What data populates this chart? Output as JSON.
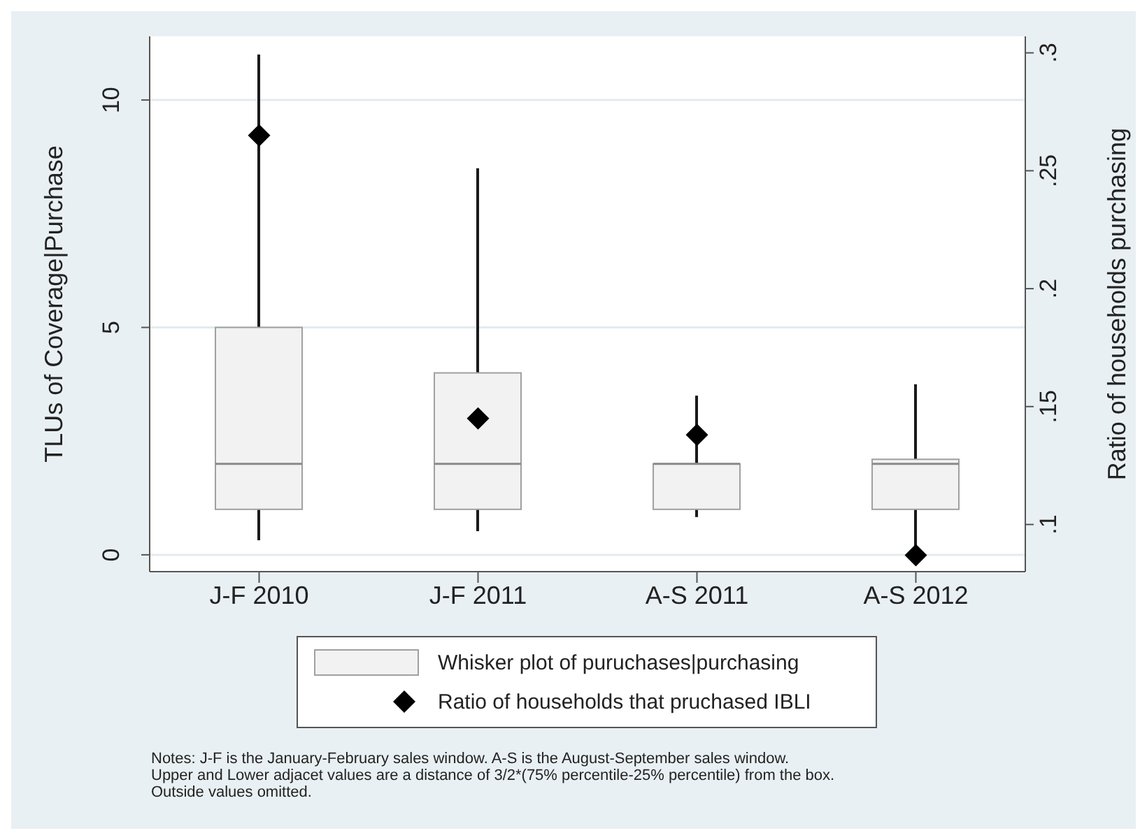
{
  "chart_data": {
    "type": "box",
    "categories": [
      "J-F 2010",
      "J-F 2011",
      "A-S 2011",
      "A-S 2012"
    ],
    "ylabel": "TLUs of Coverage|Purchase",
    "y2label": "Ratio of households purchasing",
    "ylim": [
      -0.37,
      11.4
    ],
    "yticks": [
      0,
      5,
      10
    ],
    "y2lim": [
      0.08,
      0.307
    ],
    "y2ticks": [
      {
        "value": 0.1,
        "label": ".1"
      },
      {
        "value": 0.15,
        "label": ".15"
      },
      {
        "value": 0.2,
        "label": ".2"
      },
      {
        "value": 0.25,
        "label": ".25"
      },
      {
        "value": 0.3,
        "label": ".3"
      }
    ],
    "grid": "y",
    "legend": "bottom",
    "series": [
      {
        "name": "Whisker plot of puruchases|purchasing",
        "color": "#f2f2f2",
        "boxes": [
          {
            "low": 0.32,
            "q1": 1,
            "median": 2,
            "q3": 5,
            "high": 11
          },
          {
            "low": 0.52,
            "q1": 1,
            "median": 2,
            "q3": 4,
            "high": 8.5
          },
          {
            "low": 0.83,
            "q1": 1,
            "median": 2,
            "q3": 2,
            "high": 3.5
          },
          {
            "low": 0,
            "q1": 1,
            "median": 2,
            "q3": 2.1,
            "high": 3.75
          }
        ]
      },
      {
        "name": "Ratio of households that pruchased IBLI",
        "type": "scatter",
        "axis": "y2",
        "marker": "diamond",
        "color": "#000000",
        "values": [
          0.265,
          0.145,
          0.138,
          0.087
        ]
      }
    ],
    "annotations": [
      "Notes: J-F is the January-February sales window. A-S is the August-September sales window.\nUpper and Lower adjacet values are a distance of 3/2*(75% percentile-25% percentile) from the box.\nOutside values omitted."
    ]
  }
}
